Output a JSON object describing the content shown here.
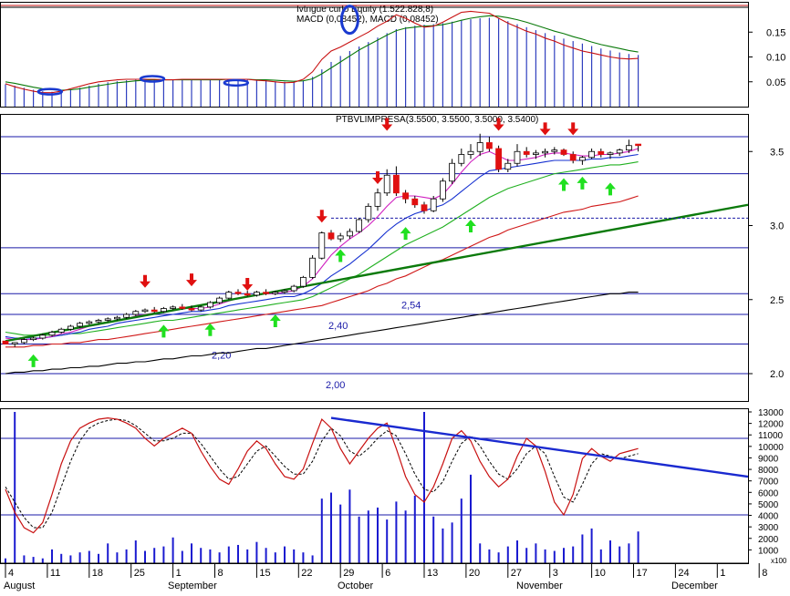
{
  "colors": {
    "background": "#ffffff",
    "frame": "#000000",
    "grid": "#1a1aa8",
    "macd_bars": "#2f3fbf",
    "macd_line": "#c81010",
    "signal_line": "#0a7a0a",
    "price_up": "#ffffff",
    "price_down": "#e01010",
    "ma_short": "#d020c0",
    "ma_mid": "#1530d0",
    "ma_long": "#20b020",
    "ma_200": "#d01818",
    "ma_300": "#000000",
    "trendline": "#0b7a0b",
    "trendline_down": "#1a2ad0",
    "buy_arrow": "#20e020",
    "sell_arrow": "#e01010",
    "stoch_k": "#c81010",
    "stoch_d": "#000000",
    "volume": "#1a1ad0",
    "highlight": "#1a3ad0"
  },
  "macd_panel": {
    "header_1": "Ivtngue curlo Equity (1.522.828,8)",
    "header_2": "MACD (0,08452), MACD (0,08452)",
    "y_ticks": [
      "0.15",
      "0.10",
      "0.05"
    ]
  },
  "price_panel": {
    "header": "PTBVLIMPRESA(3.5500, 3.5500, 3.5000, 3.5400)",
    "y_ticks": [
      "3.5",
      "3.0",
      "2.5",
      "2.0"
    ],
    "level_labels": [
      "2,54",
      "2,40",
      "2,20",
      "2,00"
    ]
  },
  "lower_panel": {
    "y_ticks": [
      "13000",
      "12000",
      "11000",
      "10000",
      "9000",
      "8000",
      "7000",
      "6000",
      "5000",
      "4000",
      "3000",
      "2000",
      "1000"
    ],
    "unit_label": "x100"
  },
  "x_axis": {
    "day_labels": [
      "4",
      "11",
      "18",
      "25",
      "1",
      "8",
      "15",
      "22",
      "29",
      "6",
      "13",
      "20",
      "27",
      "3",
      "10",
      "17",
      "24",
      "1",
      "8"
    ],
    "month_labels": [
      "August",
      "September",
      "October",
      "November",
      "December"
    ]
  },
  "chart_data": {
    "type": "candlestick",
    "price_horizontal_levels": [
      3.6,
      3.35,
      2.85,
      2.54,
      2.4,
      2.2,
      2.0
    ],
    "candles": [
      [
        2.22,
        2.22,
        2.2,
        2.2
      ],
      [
        2.2,
        2.21,
        2.18,
        2.21
      ],
      [
        2.21,
        2.24,
        2.2,
        2.23
      ],
      [
        2.23,
        2.25,
        2.22,
        2.24
      ],
      [
        2.24,
        2.27,
        2.23,
        2.26
      ],
      [
        2.26,
        2.29,
        2.25,
        2.28
      ],
      [
        2.28,
        2.31,
        2.27,
        2.3
      ],
      [
        2.3,
        2.33,
        2.29,
        2.32
      ],
      [
        2.32,
        2.35,
        2.31,
        2.34
      ],
      [
        2.34,
        2.36,
        2.33,
        2.35
      ],
      [
        2.35,
        2.37,
        2.34,
        2.36
      ],
      [
        2.36,
        2.38,
        2.35,
        2.37
      ],
      [
        2.37,
        2.39,
        2.36,
        2.38
      ],
      [
        2.38,
        2.41,
        2.37,
        2.4
      ],
      [
        2.4,
        2.43,
        2.39,
        2.42
      ],
      [
        2.42,
        2.44,
        2.41,
        2.43
      ],
      [
        2.43,
        2.45,
        2.41,
        2.42
      ],
      [
        2.42,
        2.45,
        2.41,
        2.44
      ],
      [
        2.44,
        2.46,
        2.43,
        2.45
      ],
      [
        2.45,
        2.47,
        2.43,
        2.44
      ],
      [
        2.44,
        2.46,
        2.42,
        2.43
      ],
      [
        2.43,
        2.46,
        2.42,
        2.45
      ],
      [
        2.45,
        2.49,
        2.44,
        2.48
      ],
      [
        2.48,
        2.52,
        2.47,
        2.51
      ],
      [
        2.51,
        2.56,
        2.5,
        2.55
      ],
      [
        2.55,
        2.57,
        2.53,
        2.54
      ],
      [
        2.54,
        2.56,
        2.52,
        2.53
      ],
      [
        2.53,
        2.56,
        2.52,
        2.55
      ],
      [
        2.55,
        2.57,
        2.53,
        2.54
      ],
      [
        2.54,
        2.56,
        2.53,
        2.55
      ],
      [
        2.55,
        2.57,
        2.54,
        2.56
      ],
      [
        2.56,
        2.6,
        2.55,
        2.59
      ],
      [
        2.59,
        2.66,
        2.58,
        2.65
      ],
      [
        2.65,
        2.8,
        2.64,
        2.78
      ],
      [
        2.78,
        2.96,
        2.77,
        2.95
      ],
      [
        2.95,
        2.97,
        2.9,
        2.91
      ],
      [
        2.91,
        2.95,
        2.89,
        2.93
      ],
      [
        2.93,
        2.98,
        2.91,
        2.96
      ],
      [
        2.96,
        3.05,
        2.95,
        3.04
      ],
      [
        3.04,
        3.15,
        3.02,
        3.13
      ],
      [
        3.13,
        3.25,
        3.1,
        3.22
      ],
      [
        3.22,
        3.38,
        3.2,
        3.34
      ],
      [
        3.34,
        3.4,
        3.2,
        3.22
      ],
      [
        3.22,
        3.24,
        3.15,
        3.18
      ],
      [
        3.18,
        3.2,
        3.12,
        3.14
      ],
      [
        3.14,
        3.16,
        3.08,
        3.1
      ],
      [
        3.1,
        3.2,
        3.09,
        3.18
      ],
      [
        3.18,
        3.32,
        3.16,
        3.3
      ],
      [
        3.3,
        3.45,
        3.28,
        3.42
      ],
      [
        3.42,
        3.52,
        3.4,
        3.48
      ],
      [
        3.48,
        3.55,
        3.45,
        3.5
      ],
      [
        3.5,
        3.62,
        3.47,
        3.56
      ],
      [
        3.56,
        3.6,
        3.5,
        3.52
      ],
      [
        3.52,
        3.54,
        3.36,
        3.38
      ],
      [
        3.38,
        3.45,
        3.36,
        3.42
      ],
      [
        3.42,
        3.55,
        3.4,
        3.5
      ],
      [
        3.5,
        3.53,
        3.46,
        3.48
      ],
      [
        3.48,
        3.51,
        3.45,
        3.49
      ],
      [
        3.49,
        3.52,
        3.46,
        3.5
      ],
      [
        3.5,
        3.53,
        3.48,
        3.51
      ],
      [
        3.51,
        3.52,
        3.47,
        3.48
      ],
      [
        3.48,
        3.5,
        3.42,
        3.44
      ],
      [
        3.44,
        3.47,
        3.41,
        3.46
      ],
      [
        3.46,
        3.52,
        3.45,
        3.5
      ],
      [
        3.5,
        3.52,
        3.46,
        3.48
      ],
      [
        3.48,
        3.5,
        3.45,
        3.49
      ],
      [
        3.49,
        3.52,
        3.47,
        3.51
      ],
      [
        3.51,
        3.58,
        3.49,
        3.54
      ],
      [
        3.55,
        3.55,
        3.5,
        3.54
      ]
    ],
    "ma_short": [
      2.24,
      2.23,
      2.23,
      2.23,
      2.24,
      2.25,
      2.27,
      2.28,
      2.3,
      2.32,
      2.33,
      2.35,
      2.36,
      2.37,
      2.39,
      2.4,
      2.41,
      2.42,
      2.43,
      2.44,
      2.44,
      2.44,
      2.45,
      2.47,
      2.49,
      2.51,
      2.52,
      2.53,
      2.54,
      2.54,
      2.55,
      2.56,
      2.59,
      2.64,
      2.72,
      2.8,
      2.86,
      2.91,
      2.95,
      3.0,
      3.06,
      3.13,
      3.19,
      3.2,
      3.2,
      3.19,
      3.18,
      3.21,
      3.28,
      3.36,
      3.43,
      3.48,
      3.5,
      3.47,
      3.44,
      3.44,
      3.45,
      3.46,
      3.48,
      3.49,
      3.49,
      3.48,
      3.47,
      3.47,
      3.48,
      3.48,
      3.49,
      3.5,
      3.52
    ],
    "ma_mid": [
      2.25,
      2.24,
      2.24,
      2.24,
      2.24,
      2.25,
      2.26,
      2.27,
      2.28,
      2.3,
      2.31,
      2.32,
      2.34,
      2.35,
      2.36,
      2.37,
      2.38,
      2.39,
      2.4,
      2.41,
      2.42,
      2.42,
      2.43,
      2.44,
      2.46,
      2.47,
      2.48,
      2.49,
      2.5,
      2.51,
      2.52,
      2.52,
      2.54,
      2.57,
      2.61,
      2.66,
      2.7,
      2.74,
      2.79,
      2.84,
      2.9,
      2.96,
      3.01,
      3.05,
      3.08,
      3.1,
      3.12,
      3.14,
      3.18,
      3.23,
      3.28,
      3.33,
      3.37,
      3.38,
      3.39,
      3.4,
      3.41,
      3.42,
      3.43,
      3.44,
      3.44,
      3.44,
      3.44,
      3.45,
      3.45,
      3.46,
      3.46,
      3.47,
      3.48
    ],
    "ma_long": [
      2.28,
      2.27,
      2.26,
      2.26,
      2.26,
      2.26,
      2.26,
      2.27,
      2.27,
      2.28,
      2.29,
      2.3,
      2.31,
      2.32,
      2.33,
      2.34,
      2.35,
      2.36,
      2.36,
      2.37,
      2.38,
      2.39,
      2.4,
      2.41,
      2.42,
      2.43,
      2.44,
      2.45,
      2.46,
      2.47,
      2.48,
      2.49,
      2.5,
      2.52,
      2.55,
      2.58,
      2.61,
      2.64,
      2.67,
      2.71,
      2.75,
      2.79,
      2.83,
      2.87,
      2.9,
      2.93,
      2.96,
      2.99,
      3.03,
      3.07,
      3.11,
      3.15,
      3.19,
      3.22,
      3.25,
      3.27,
      3.29,
      3.31,
      3.33,
      3.35,
      3.36,
      3.37,
      3.38,
      3.39,
      3.4,
      3.41,
      3.41,
      3.42,
      3.43
    ],
    "ma_200": [
      2.18,
      2.18,
      2.18,
      2.19,
      2.19,
      2.2,
      2.2,
      2.21,
      2.21,
      2.22,
      2.23,
      2.23,
      2.24,
      2.25,
      2.26,
      2.27,
      2.28,
      2.29,
      2.3,
      2.31,
      2.32,
      2.33,
      2.34,
      2.35,
      2.36,
      2.37,
      2.38,
      2.39,
      2.4,
      2.41,
      2.42,
      2.43,
      2.44,
      2.45,
      2.46,
      2.48,
      2.5,
      2.52,
      2.54,
      2.56,
      2.59,
      2.61,
      2.64,
      2.66,
      2.69,
      2.72,
      2.75,
      2.77,
      2.8,
      2.83,
      2.86,
      2.89,
      2.92,
      2.94,
      2.97,
      2.99,
      3.01,
      3.03,
      3.05,
      3.07,
      3.09,
      3.1,
      3.11,
      3.13,
      3.14,
      3.15,
      3.16,
      3.18,
      3.2
    ],
    "ma_300": [
      2.0,
      2.01,
      2.01,
      2.02,
      2.02,
      2.03,
      2.03,
      2.04,
      2.04,
      2.05,
      2.05,
      2.06,
      2.07,
      2.07,
      2.08,
      2.08,
      2.09,
      2.1,
      2.1,
      2.11,
      2.12,
      2.12,
      2.13,
      2.14,
      2.14,
      2.15,
      2.16,
      2.17,
      2.17,
      2.18,
      2.19,
      2.2,
      2.21,
      2.22,
      2.23,
      2.24,
      2.25,
      2.26,
      2.27,
      2.28,
      2.29,
      2.3,
      2.31,
      2.32,
      2.33,
      2.34,
      2.35,
      2.36,
      2.37,
      2.38,
      2.39,
      2.4,
      2.41,
      2.42,
      2.43,
      2.44,
      2.45,
      2.46,
      2.47,
      2.48,
      2.49,
      2.5,
      2.51,
      2.52,
      2.53,
      2.54,
      2.54,
      2.55,
      2.55
    ],
    "trendline": {
      "from": [
        0,
        2.22
      ],
      "to": [
        72,
        3.05
      ]
    },
    "dotted_level": {
      "from": [
        35,
        3.05
      ],
      "to": [
        72,
        3.05
      ]
    },
    "sell_arrows": [
      [
        15,
        2.58
      ],
      [
        20,
        2.59
      ],
      [
        26,
        2.56
      ],
      [
        34,
        3.02
      ],
      [
        40,
        3.28
      ],
      [
        41,
        3.64
      ],
      [
        53,
        3.64
      ],
      [
        58,
        3.61
      ],
      [
        61,
        3.61
      ]
    ],
    "buy_arrows": [
      [
        3,
        2.13
      ],
      [
        17,
        2.33
      ],
      [
        22,
        2.34
      ],
      [
        29,
        2.4
      ],
      [
        36,
        2.84
      ],
      [
        43,
        2.99
      ],
      [
        50,
        3.04
      ],
      [
        60,
        3.32
      ],
      [
        62,
        3.33
      ],
      [
        65,
        3.29
      ]
    ],
    "macd": {
      "y_range": [
        0.0,
        0.2
      ],
      "bars": [
        0.045,
        0.042,
        0.038,
        0.034,
        0.031,
        0.03,
        0.031,
        0.034,
        0.038,
        0.042,
        0.046,
        0.049,
        0.051,
        0.053,
        0.054,
        0.054,
        0.055,
        0.055,
        0.055,
        0.055,
        0.054,
        0.054,
        0.054,
        0.054,
        0.055,
        0.055,
        0.055,
        0.054,
        0.053,
        0.051,
        0.05,
        0.05,
        0.052,
        0.06,
        0.075,
        0.09,
        0.102,
        0.112,
        0.121,
        0.13,
        0.139,
        0.148,
        0.156,
        0.16,
        0.163,
        0.165,
        0.166,
        0.168,
        0.171,
        0.174,
        0.176,
        0.178,
        0.179,
        0.177,
        0.172,
        0.166,
        0.16,
        0.154,
        0.148,
        0.143,
        0.137,
        0.132,
        0.127,
        0.122,
        0.117,
        0.113,
        0.109,
        0.106,
        0.104
      ],
      "macd_line": [
        0.046,
        0.04,
        0.035,
        0.031,
        0.028,
        0.028,
        0.031,
        0.036,
        0.041,
        0.046,
        0.05,
        0.052,
        0.054,
        0.055,
        0.055,
        0.055,
        0.055,
        0.054,
        0.054,
        0.055,
        0.055,
        0.055,
        0.055,
        0.055,
        0.055,
        0.055,
        0.055,
        0.053,
        0.052,
        0.05,
        0.048,
        0.049,
        0.055,
        0.07,
        0.095,
        0.112,
        0.12,
        0.13,
        0.14,
        0.15,
        0.162,
        0.172,
        0.185,
        0.178,
        0.168,
        0.16,
        0.162,
        0.17,
        0.18,
        0.19,
        0.192,
        0.19,
        0.188,
        0.178,
        0.168,
        0.16,
        0.152,
        0.146,
        0.138,
        0.132,
        0.124,
        0.118,
        0.112,
        0.108,
        0.104,
        0.1,
        0.097,
        0.096,
        0.097
      ],
      "signal_line": [
        0.05,
        0.047,
        0.043,
        0.039,
        0.036,
        0.034,
        0.033,
        0.034,
        0.036,
        0.039,
        0.042,
        0.045,
        0.048,
        0.05,
        0.052,
        0.053,
        0.054,
        0.054,
        0.054,
        0.054,
        0.054,
        0.054,
        0.054,
        0.054,
        0.055,
        0.055,
        0.055,
        0.054,
        0.054,
        0.053,
        0.052,
        0.051,
        0.052,
        0.056,
        0.066,
        0.078,
        0.09,
        0.102,
        0.114,
        0.124,
        0.134,
        0.144,
        0.153,
        0.158,
        0.16,
        0.162,
        0.163,
        0.165,
        0.169,
        0.174,
        0.178,
        0.181,
        0.183,
        0.182,
        0.179,
        0.175,
        0.17,
        0.164,
        0.158,
        0.152,
        0.147,
        0.141,
        0.136,
        0.13,
        0.125,
        0.121,
        0.117,
        0.113,
        0.11
      ],
      "highlights": [
        [
          4,
          0.03
        ],
        [
          15,
          0.056
        ],
        [
          24,
          0.048
        ],
        [
          37,
          0.175
        ]
      ]
    },
    "stochastic": {
      "y_range": [
        0,
        100
      ],
      "k": [
        40,
        22,
        10,
        6,
        14,
        36,
        60,
        78,
        88,
        92,
        95,
        96,
        95,
        92,
        88,
        80,
        74,
        80,
        84,
        88,
        84,
        70,
        58,
        48,
        44,
        56,
        70,
        78,
        72,
        60,
        50,
        48,
        56,
        76,
        95,
        88,
        72,
        60,
        70,
        80,
        88,
        92,
        72,
        50,
        36,
        30,
        42,
        60,
        80,
        86,
        78,
        62,
        50,
        42,
        48,
        66,
        80,
        74,
        54,
        30,
        20,
        36,
        64,
        72,
        66,
        62,
        68,
        70,
        72
      ],
      "d": [
        42,
        30,
        18,
        10,
        10,
        22,
        42,
        62,
        78,
        88,
        92,
        94,
        95,
        94,
        90,
        84,
        78,
        78,
        80,
        84,
        84,
        76,
        66,
        56,
        48,
        50,
        60,
        70,
        74,
        66,
        58,
        52,
        52,
        62,
        78,
        88,
        82,
        70,
        66,
        72,
        80,
        86,
        82,
        68,
        52,
        40,
        38,
        46,
        62,
        76,
        82,
        74,
        62,
        52,
        48,
        56,
        68,
        74,
        68,
        50,
        34,
        30,
        44,
        60,
        68,
        66,
        64,
        66,
        68
      ],
      "trendline": {
        "from": [
          35,
          96
        ],
        "to": [
          72,
          58
        ]
      },
      "horizontal_levels": [
        80,
        20
      ]
    },
    "volume": {
      "values": [
        2,
        100,
        4,
        3,
        2,
        8,
        5,
        4,
        6,
        7,
        5,
        12,
        6,
        8,
        14,
        7,
        9,
        10,
        16,
        7,
        12,
        9,
        8,
        6,
        10,
        11,
        8,
        13,
        9,
        6,
        10,
        8,
        6,
        4,
        42,
        46,
        38,
        48,
        30,
        34,
        36,
        28,
        40,
        34,
        44,
        100,
        30,
        22,
        26,
        42,
        58,
        12,
        8,
        6,
        10,
        14,
        9,
        12,
        8,
        7,
        9,
        10,
        18,
        22,
        8,
        14,
        10,
        12,
        20
      ],
      "y_range": [
        0,
        13000
      ]
    }
  }
}
